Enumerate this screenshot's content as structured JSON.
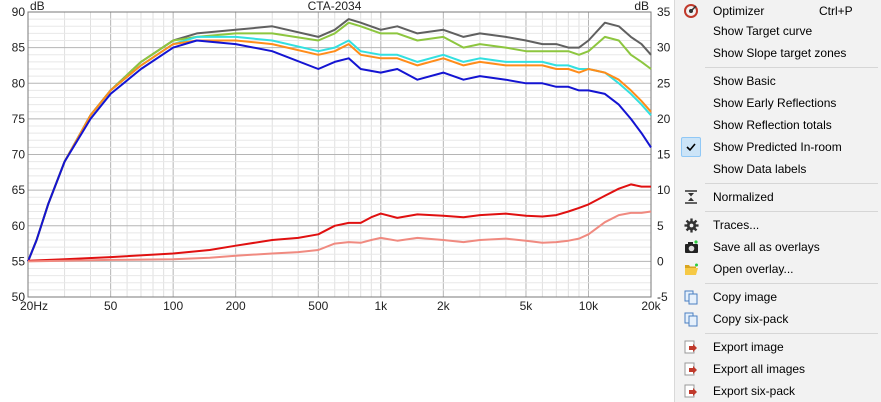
{
  "chart_data": {
    "type": "line",
    "title": "CTA-2034",
    "ylabel": "dB",
    "y2label": "dB",
    "x_scale": "log",
    "xlim": [
      20,
      20000
    ],
    "ylim": [
      50,
      90
    ],
    "y2lim": [
      -5,
      35
    ],
    "x_ticks": [
      20,
      50,
      100,
      200,
      500,
      1000,
      2000,
      5000,
      10000,
      20000
    ],
    "x_tick_labels": [
      "20Hz",
      "50",
      "100",
      "200",
      "500",
      "1k",
      "2k",
      "5k",
      "10k",
      "20k"
    ],
    "y_ticks": [
      50,
      55,
      60,
      65,
      70,
      75,
      80,
      85,
      90
    ],
    "y2_ticks": [
      -5,
      0,
      5,
      10,
      15,
      20,
      25,
      30,
      35
    ],
    "grid": true,
    "series": [
      {
        "color": "#606060",
        "axis": "left",
        "x": [
          20,
          22,
          25,
          30,
          40,
          50,
          70,
          100,
          130,
          200,
          300,
          500,
          600,
          700,
          800,
          1000,
          1200,
          1500,
          2000,
          2500,
          3000,
          4000,
          5000,
          6000,
          7000,
          8000,
          9000,
          10000,
          12000,
          14000,
          16000,
          18000,
          20000
        ],
        "y": [
          55,
          58,
          63,
          69,
          75.5,
          79,
          83,
          86,
          87,
          87.5,
          88,
          86.5,
          87.5,
          89,
          88.5,
          87.5,
          88,
          87,
          87.5,
          86.5,
          87,
          86.5,
          86,
          85.5,
          85.5,
          85,
          85,
          86,
          88.5,
          88,
          86.5,
          85.5,
          84
        ]
      },
      {
        "color": "#8dc63f",
        "axis": "left",
        "x": [
          20,
          22,
          25,
          30,
          40,
          50,
          70,
          100,
          130,
          200,
          300,
          500,
          600,
          700,
          800,
          1000,
          1200,
          1500,
          2000,
          2500,
          3000,
          4000,
          5000,
          6000,
          7000,
          8000,
          9000,
          10000,
          12000,
          14000,
          16000,
          18000,
          20000
        ],
        "y": [
          55,
          58,
          63,
          69,
          75.5,
          79,
          83,
          86,
          86.5,
          87,
          87,
          86,
          87,
          88.5,
          88,
          87,
          87,
          86,
          86.5,
          85,
          85.5,
          85,
          84.5,
          84.5,
          84.5,
          84.5,
          84,
          84.5,
          86.5,
          86,
          84,
          83,
          82
        ]
      },
      {
        "color": "#33e0e0",
        "axis": "left",
        "x": [
          20,
          22,
          25,
          30,
          40,
          50,
          70,
          100,
          130,
          200,
          300,
          500,
          600,
          700,
          800,
          1000,
          1200,
          1500,
          2000,
          2500,
          3000,
          4000,
          5000,
          6000,
          7000,
          8000,
          9000,
          10000,
          12000,
          14000,
          16000,
          18000,
          20000
        ],
        "y": [
          55,
          58,
          63,
          69,
          75.5,
          79,
          82.5,
          85.5,
          86.5,
          86.5,
          86,
          84.5,
          85,
          86,
          84.5,
          84,
          84,
          83,
          84,
          83,
          83.5,
          83,
          83,
          83,
          82.5,
          82.5,
          82,
          82,
          81.5,
          80,
          78.5,
          77,
          75.5
        ]
      },
      {
        "color": "#ff8c1a",
        "axis": "left",
        "x": [
          20,
          22,
          25,
          30,
          40,
          50,
          70,
          100,
          130,
          200,
          300,
          500,
          600,
          700,
          800,
          1000,
          1200,
          1500,
          2000,
          2500,
          3000,
          4000,
          5000,
          6000,
          7000,
          8000,
          9000,
          10000,
          12000,
          14000,
          16000,
          18000,
          20000
        ],
        "y": [
          55,
          58,
          63,
          69,
          75.5,
          79,
          82.5,
          85.5,
          86,
          86,
          85.5,
          84,
          84.5,
          85.5,
          84,
          83.5,
          83.5,
          82.5,
          83.5,
          82.5,
          83,
          82.5,
          82.5,
          82.5,
          82,
          82,
          81.5,
          82,
          81.5,
          80.5,
          79,
          77.5,
          76
        ]
      },
      {
        "color": "#1414d2",
        "axis": "left",
        "x": [
          20,
          22,
          25,
          30,
          40,
          50,
          70,
          100,
          130,
          200,
          300,
          500,
          600,
          700,
          800,
          1000,
          1200,
          1500,
          2000,
          2500,
          3000,
          4000,
          5000,
          6000,
          7000,
          8000,
          9000,
          10000,
          12000,
          14000,
          16000,
          18000,
          20000
        ],
        "y": [
          55,
          58,
          63,
          69,
          75,
          78.5,
          82,
          85,
          86,
          85.5,
          84.5,
          82,
          83,
          83.5,
          82,
          81.5,
          82,
          80.5,
          81.5,
          80.5,
          81,
          80.5,
          80,
          80,
          79.5,
          79.5,
          79,
          79,
          78.5,
          77,
          75,
          73,
          71
        ]
      },
      {
        "color": "#e01010",
        "axis": "right",
        "x": [
          20,
          30,
          50,
          100,
          150,
          200,
          300,
          400,
          500,
          600,
          700,
          800,
          900,
          1000,
          1200,
          1500,
          2000,
          2500,
          3000,
          4000,
          5000,
          6000,
          7000,
          8000,
          9000,
          10000,
          12000,
          14000,
          16000,
          18000,
          20000
        ],
        "y": [
          0.1,
          0.3,
          0.6,
          1.1,
          1.6,
          2.2,
          3,
          3.3,
          3.8,
          5,
          5.4,
          5.4,
          6.2,
          6.7,
          6.1,
          6.6,
          6.4,
          6.2,
          6.5,
          6.7,
          6.4,
          6.3,
          6.5,
          7,
          7.5,
          8,
          9.2,
          10.2,
          10.8,
          10.5,
          10.5
        ]
      },
      {
        "color": "#f08a80",
        "axis": "right",
        "x": [
          20,
          30,
          50,
          100,
          150,
          200,
          300,
          400,
          500,
          600,
          700,
          800,
          900,
          1000,
          1200,
          1500,
          2000,
          2500,
          3000,
          4000,
          5000,
          6000,
          7000,
          8000,
          9000,
          10000,
          12000,
          14000,
          16000,
          18000,
          20000
        ],
        "y": [
          0,
          0.1,
          0.2,
          0.3,
          0.5,
          0.8,
          1.1,
          1.3,
          1.6,
          2.5,
          2.7,
          2.6,
          3,
          3.3,
          2.9,
          3.3,
          3,
          2.7,
          3,
          3.2,
          2.9,
          2.6,
          2.7,
          2.9,
          3.2,
          3.8,
          5.5,
          6.5,
          6.8,
          6.8,
          7
        ]
      }
    ]
  },
  "menu": {
    "items": [
      {
        "label": "Optimizer",
        "shortcut": "Ctrl+P",
        "icon": "optimizer-icon"
      },
      {
        "label": "Show Target curve"
      },
      {
        "label": "Show Slope target zones"
      },
      {
        "label": "Show Basic"
      },
      {
        "label": "Show Early Reflections"
      },
      {
        "label": "Show Reflection totals"
      },
      {
        "label": "Show Predicted In-room",
        "checked": true,
        "icon": "checkmark-icon"
      },
      {
        "label": "Show Data labels"
      },
      {
        "label": "Normalized",
        "icon": "normalize-icon"
      },
      {
        "label": "Traces...",
        "icon": "gear-icon"
      },
      {
        "label": "Save all as overlays",
        "icon": "camera-icon"
      },
      {
        "label": "Open overlay...",
        "icon": "folder-open-icon"
      },
      {
        "label": "Copy image",
        "icon": "copy-icon"
      },
      {
        "label": "Copy six-pack",
        "icon": "copy-icon"
      },
      {
        "label": "Export image",
        "icon": "export-icon"
      },
      {
        "label": "Export all images",
        "icon": "export-icon"
      },
      {
        "label": "Export six-pack",
        "icon": "export-icon"
      }
    ]
  }
}
